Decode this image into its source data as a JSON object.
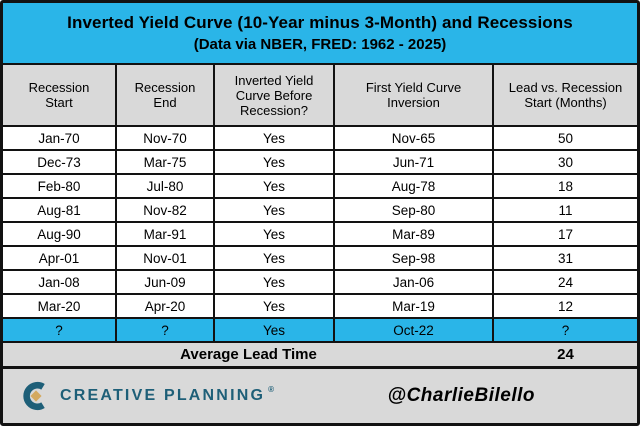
{
  "header": {
    "title": "Inverted Yield Curve (10-Year minus 3-Month) and Recessions",
    "subtitle": "(Data via NBER, FRED: 1962 - 2025)"
  },
  "table": {
    "headers": [
      "Recession\nStart",
      "Recession\nEnd",
      "Inverted Yield\nCurve Before\nRecession?",
      "First Yield Curve\nInversion",
      "Lead vs. Recession\nStart (Months)"
    ],
    "rows": [
      {
        "cells": [
          "Jan-70",
          "Nov-70",
          "Yes",
          "Nov-65",
          "50"
        ],
        "highlight": false
      },
      {
        "cells": [
          "Dec-73",
          "Mar-75",
          "Yes",
          "Jun-71",
          "30"
        ],
        "highlight": false
      },
      {
        "cells": [
          "Feb-80",
          "Jul-80",
          "Yes",
          "Aug-78",
          "18"
        ],
        "highlight": false
      },
      {
        "cells": [
          "Aug-81",
          "Nov-82",
          "Yes",
          "Sep-80",
          "11"
        ],
        "highlight": false
      },
      {
        "cells": [
          "Aug-90",
          "Mar-91",
          "Yes",
          "Mar-89",
          "17"
        ],
        "highlight": false
      },
      {
        "cells": [
          "Apr-01",
          "Nov-01",
          "Yes",
          "Sep-98",
          "31"
        ],
        "highlight": false
      },
      {
        "cells": [
          "Jan-08",
          "Jun-09",
          "Yes",
          "Jan-06",
          "24"
        ],
        "highlight": false
      },
      {
        "cells": [
          "Mar-20",
          "Apr-20",
          "Yes",
          "Mar-19",
          "12"
        ],
        "highlight": false
      },
      {
        "cells": [
          "?",
          "?",
          "Yes",
          "Oct-22",
          "?"
        ],
        "highlight": true
      }
    ],
    "average_row": {
      "label": "Average Lead Time",
      "value": "24"
    }
  },
  "footer": {
    "brand": "CREATIVE PLANNING",
    "brand_mark": "®",
    "logo_icon": "creative-planning-c-mark",
    "handle": "@CharlieBilello"
  },
  "colors": {
    "cyan": "#2ab5e8",
    "panel_gray": "#d9d9d9",
    "row_white": "#ffffff",
    "border_black": "#121212",
    "brand_teal": "#1e5f78",
    "brand_gold": "#d3a95f"
  },
  "chart_data": {
    "type": "table",
    "title": "Inverted Yield Curve (10-Year minus 3-Month) and Recessions",
    "subtitle": "(Data via NBER, FRED: 1962 - 2025)",
    "columns": [
      "Recession Start",
      "Recession End",
      "Inverted Yield Curve Before Recession?",
      "First Yield Curve Inversion",
      "Lead vs. Recession Start (Months)"
    ],
    "rows": [
      [
        "Jan-70",
        "Nov-70",
        "Yes",
        "Nov-65",
        50
      ],
      [
        "Dec-73",
        "Mar-75",
        "Yes",
        "Jun-71",
        30
      ],
      [
        "Feb-80",
        "Jul-80",
        "Yes",
        "Aug-78",
        18
      ],
      [
        "Aug-81",
        "Nov-82",
        "Yes",
        "Sep-80",
        11
      ],
      [
        "Aug-90",
        "Mar-91",
        "Yes",
        "Mar-89",
        17
      ],
      [
        "Apr-01",
        "Nov-01",
        "Yes",
        "Sep-98",
        31
      ],
      [
        "Jan-08",
        "Jun-09",
        "Yes",
        "Jan-06",
        24
      ],
      [
        "Mar-20",
        "Apr-20",
        "Yes",
        "Mar-19",
        12
      ],
      [
        "?",
        "?",
        "Yes",
        "Oct-22",
        "?"
      ]
    ],
    "highlighted_row_index": 8,
    "summary_row": {
      "label": "Average Lead Time",
      "value": 24
    }
  }
}
